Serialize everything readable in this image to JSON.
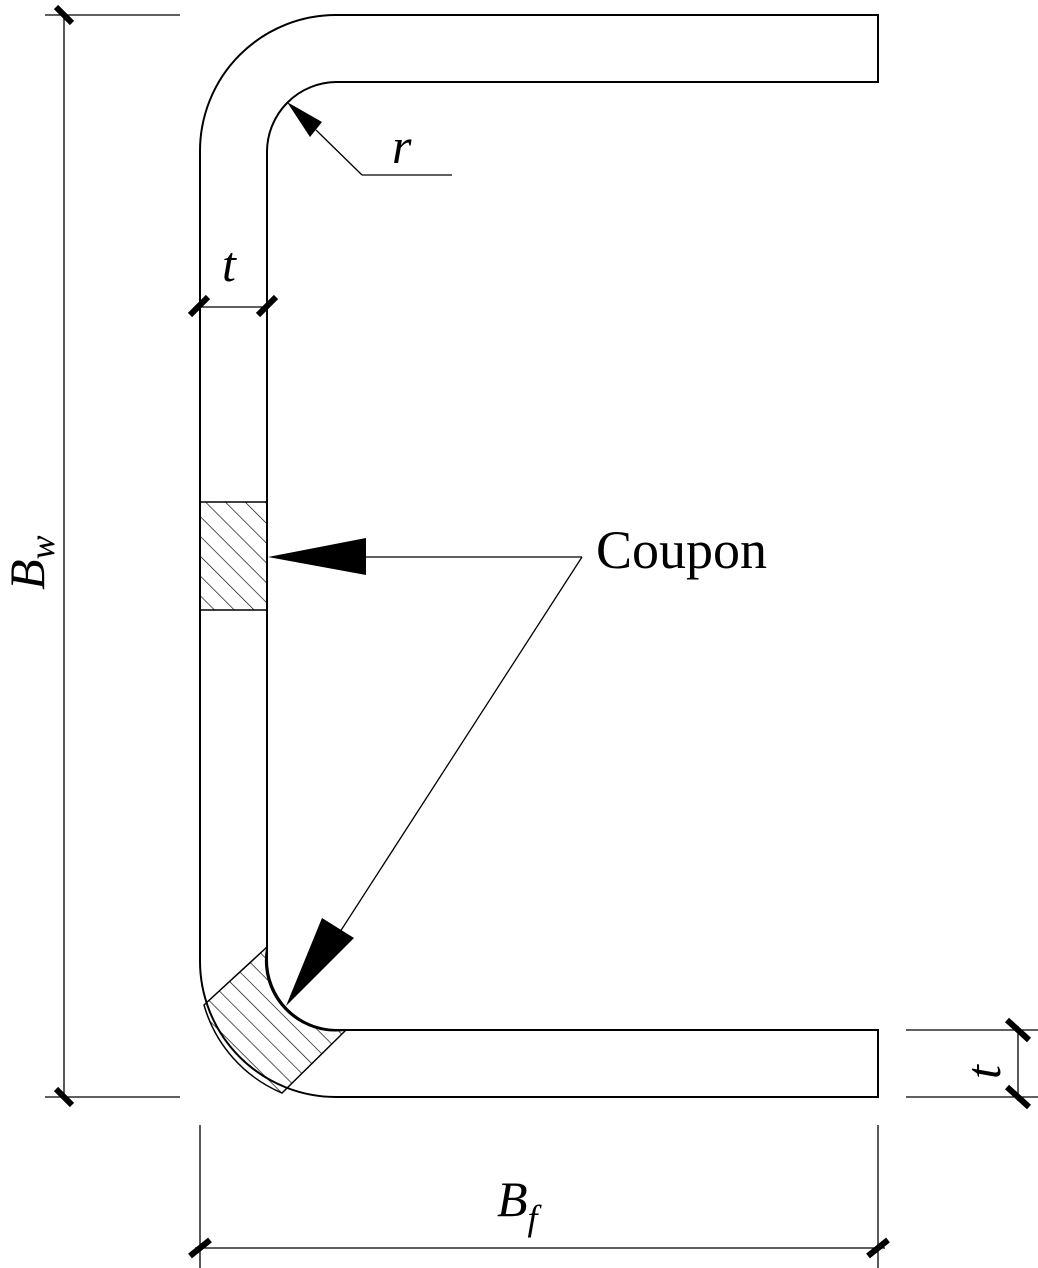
{
  "diagram": {
    "title": "",
    "labels": {
      "web_width_main": "B",
      "web_width_sub": "w",
      "flange_width_main": "B",
      "flange_width_sub": "f",
      "radius": "r",
      "thickness_web": "t",
      "thickness_flange": "t",
      "coupon": "Coupon"
    },
    "colors": {
      "stroke": "#000000",
      "background": "#ffffff"
    }
  }
}
